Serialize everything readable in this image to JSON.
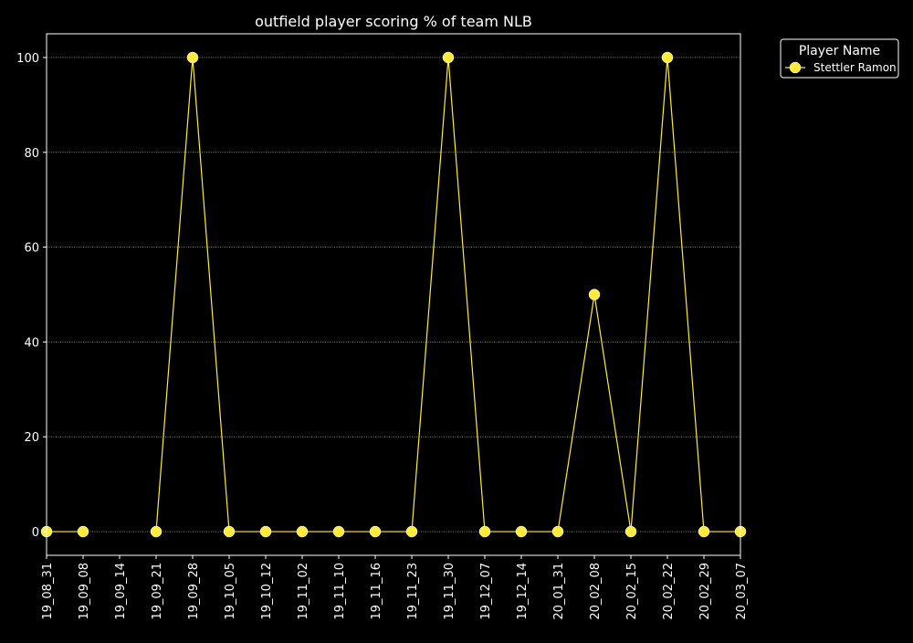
{
  "chart_data": {
    "type": "line",
    "title": "outfield player scoring % of team NLB",
    "xlabel": "",
    "ylabel": "",
    "categories": [
      "19_08_31",
      "19_09_08",
      "19_09_14",
      "19_09_21",
      "19_09_28",
      "19_10_05",
      "19_10_12",
      "19_11_02",
      "19_11_10",
      "19_11_16",
      "19_11_23",
      "19_11_30",
      "19_12_07",
      "19_12_14",
      "20_01_31",
      "20_02_08",
      "20_02_15",
      "20_02_22",
      "20_02_29",
      "20_03_07"
    ],
    "ylim": [
      -5,
      105
    ],
    "yticks": [
      0,
      20,
      40,
      60,
      80,
      100
    ],
    "grid": "y-dotted",
    "legend": {
      "title": "Player Name",
      "placement": "outside-top-right"
    },
    "series": [
      {
        "name": "Stettler Ramon",
        "color": "#ffeb3b",
        "values": [
          0,
          0,
          null,
          0,
          100,
          0,
          0,
          0,
          0,
          0,
          0,
          100,
          0,
          0,
          0,
          50,
          0,
          100,
          0,
          0
        ]
      }
    ]
  },
  "colors": {
    "background": "#000000",
    "axes": "#ffffff",
    "grid": "#ffffff",
    "text": "#ffffff"
  }
}
